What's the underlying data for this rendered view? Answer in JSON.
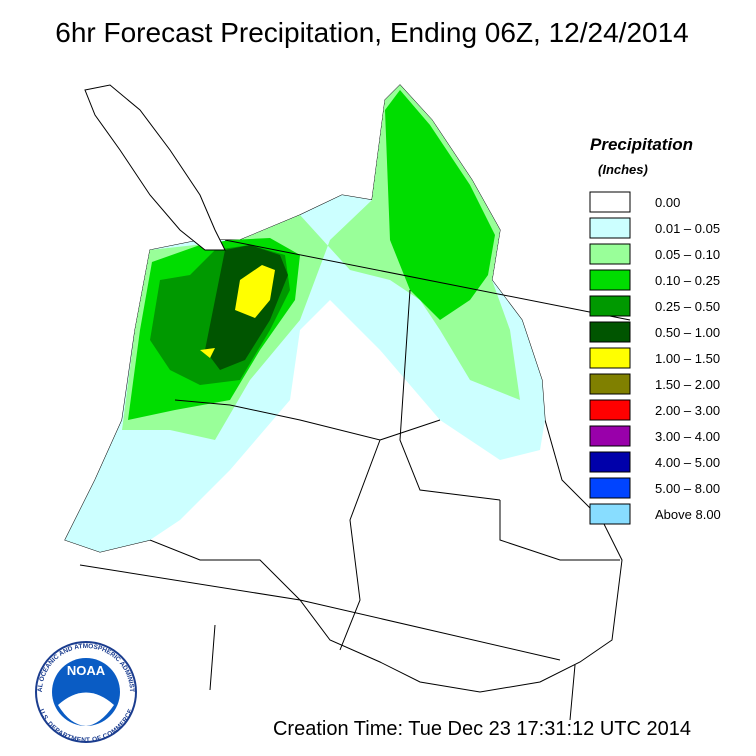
{
  "title": "6hr Forecast Precipitation, Ending 06Z, 12/24/2014",
  "legend": {
    "title": "Precipitation",
    "subtitle": "(Inches)",
    "entries": [
      {
        "label": "0.00",
        "color": "#ffffff"
      },
      {
        "label": "0.01 – 0.05",
        "color": "#ccffff"
      },
      {
        "label": "0.05 – 0.10",
        "color": "#99ff99"
      },
      {
        "label": "0.10 – 0.25",
        "color": "#00dd00"
      },
      {
        "label": "0.25 – 0.50",
        "color": "#009900"
      },
      {
        "label": "0.50 – 1.00",
        "color": "#005500"
      },
      {
        "label": "1.00 – 1.50",
        "color": "#ffff00"
      },
      {
        "label": "1.50 – 2.00",
        "color": "#808000"
      },
      {
        "label": "2.00 – 3.00",
        "color": "#ff0000"
      },
      {
        "label": "3.00 – 4.00",
        "color": "#9900aa"
      },
      {
        "label": "4.00 – 5.00",
        "color": "#0000aa"
      },
      {
        "label": "5.00 – 8.00",
        "color": "#0044ff"
      },
      {
        "label": "Above 8.00",
        "color": "#88ddff"
      }
    ]
  },
  "logo": {
    "name": "NOAA",
    "top_text": "NATIONAL OCEANIC AND ATMOSPHERIC ADMINISTRATION",
    "bottom_text": "U.S. DEPARTMENT OF COMMERCE"
  },
  "footer": "Creation Time: Tue Dec 23 17:31:12 UTC 2014"
}
